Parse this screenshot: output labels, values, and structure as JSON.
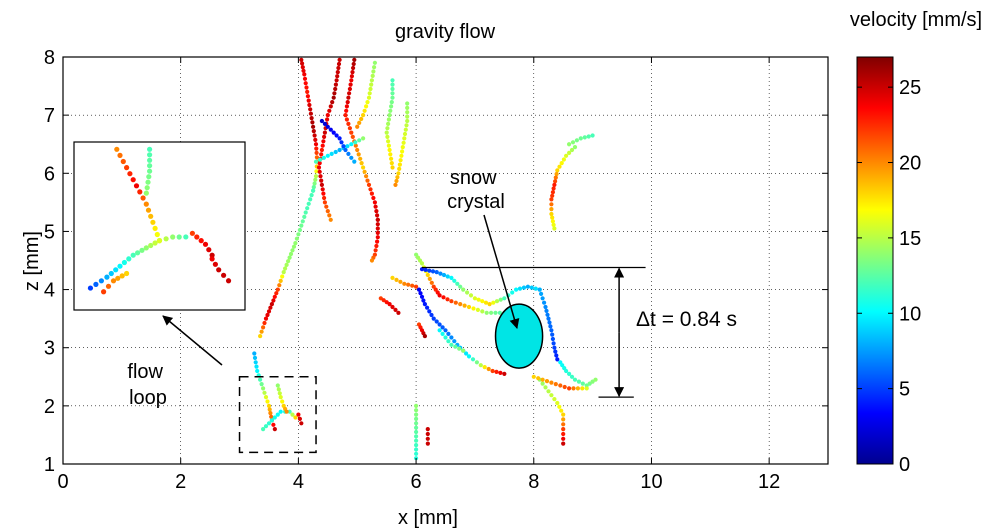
{
  "chart_data": {
    "type": "scatter",
    "title": "gravity flow",
    "xlabel": "x [mm]",
    "ylabel": "z [mm]",
    "xlim": [
      0,
      13
    ],
    "ylim": [
      1,
      8
    ],
    "xticks": [
      "0",
      "2",
      "4",
      "6",
      "8",
      "10",
      "12"
    ],
    "yticks": [
      "1",
      "2",
      "3",
      "4",
      "5",
      "6",
      "7",
      "8"
    ],
    "grid": true,
    "colorbar": {
      "label": "velocity [mm/s]",
      "range": [
        0,
        27
      ],
      "ticks": [
        "0",
        "5",
        "10",
        "15",
        "20",
        "25"
      ],
      "colormap": "jet"
    },
    "annotations": {
      "snow_crystal": "snow\ncrystal",
      "flow_loop": "flow\nloop",
      "time_interval": "Δt = 0.84 s"
    },
    "crystal": {
      "center": [
        7.75,
        3.2
      ],
      "semi_axes": [
        0.4,
        0.55
      ],
      "color": "#00e5e5"
    },
    "flow_loop_box": {
      "x": [
        3.0,
        4.3
      ],
      "z": [
        1.2,
        2.5
      ]
    },
    "dt_bracket": {
      "z_top": 4.38,
      "z_bottom": 2.15,
      "x_top_line": [
        6.1,
        9.9
      ],
      "x_bottom_line": [
        9.1,
        9.7
      ],
      "x_arrow": 9.45
    },
    "tracks": [
      {
        "points": [
          [
            4.05,
            7.95
          ],
          [
            4.1,
            7.7
          ],
          [
            4.15,
            7.4
          ],
          [
            4.2,
            7.1
          ],
          [
            4.25,
            6.8
          ],
          [
            4.3,
            6.5
          ],
          [
            4.32,
            6.2
          ],
          [
            4.3,
            5.95
          ],
          [
            4.25,
            5.7
          ]
        ],
        "velocity": [
          25,
          24,
          23,
          25,
          26,
          24,
          20,
          15,
          12
        ]
      },
      {
        "points": [
          [
            4.25,
            5.7
          ],
          [
            4.15,
            5.4
          ],
          [
            4.05,
            5.1
          ],
          [
            3.95,
            4.8
          ],
          [
            3.85,
            4.55
          ],
          [
            3.75,
            4.3
          ],
          [
            3.65,
            4.0
          ],
          [
            3.55,
            3.75
          ],
          [
            3.45,
            3.5
          ],
          [
            3.35,
            3.2
          ]
        ],
        "velocity": [
          12,
          12,
          13,
          14,
          14,
          15,
          22,
          25,
          24,
          18
        ]
      },
      {
        "points": [
          [
            4.7,
            7.95
          ],
          [
            4.65,
            7.6
          ],
          [
            4.6,
            7.3
          ],
          [
            4.5,
            7.0
          ],
          [
            4.45,
            6.7
          ],
          [
            4.4,
            6.4
          ],
          [
            4.35,
            6.1
          ],
          [
            4.4,
            5.8
          ],
          [
            4.45,
            5.5
          ],
          [
            4.55,
            5.2
          ]
        ],
        "velocity": [
          25,
          25,
          26,
          24,
          25,
          23,
          24,
          25,
          22,
          20
        ]
      },
      {
        "points": [
          [
            4.95,
            7.95
          ],
          [
            4.9,
            7.6
          ],
          [
            4.85,
            7.3
          ],
          [
            4.8,
            7.0
          ],
          [
            4.9,
            6.7
          ],
          [
            5.0,
            6.4
          ],
          [
            5.1,
            6.1
          ],
          [
            5.2,
            5.8
          ],
          [
            5.3,
            5.5
          ],
          [
            5.35,
            5.2
          ]
        ],
        "velocity": [
          26,
          24,
          25,
          23,
          22,
          20,
          18,
          22,
          24,
          25
        ]
      },
      {
        "points": [
          [
            5.3,
            7.9
          ],
          [
            5.25,
            7.6
          ],
          [
            5.2,
            7.3
          ],
          [
            5.1,
            7.0
          ],
          [
            5.0,
            6.8
          ]
        ],
        "velocity": [
          14,
          15,
          16,
          18,
          20
        ]
      },
      {
        "points": [
          [
            4.3,
            6.2
          ],
          [
            4.5,
            6.3
          ],
          [
            4.7,
            6.4
          ],
          [
            4.9,
            6.5
          ],
          [
            5.1,
            6.6
          ]
        ],
        "velocity": [
          12,
          10,
          8,
          10,
          14
        ]
      },
      {
        "points": [
          [
            5.6,
            7.6
          ],
          [
            5.6,
            7.3
          ],
          [
            5.55,
            7.0
          ],
          [
            5.5,
            6.7
          ],
          [
            5.55,
            6.4
          ],
          [
            5.6,
            6.1
          ]
        ],
        "velocity": [
          12,
          13,
          14,
          15,
          17,
          18
        ]
      },
      {
        "points": [
          [
            5.85,
            7.2
          ],
          [
            5.85,
            6.9
          ],
          [
            5.8,
            6.6
          ],
          [
            5.75,
            6.3
          ],
          [
            5.7,
            6.0
          ],
          [
            5.65,
            5.8
          ]
        ],
        "velocity": [
          14,
          15,
          16,
          17,
          18,
          20
        ]
      },
      {
        "points": [
          [
            4.4,
            6.9
          ],
          [
            4.55,
            6.75
          ],
          [
            4.7,
            6.6
          ],
          [
            4.8,
            6.4
          ],
          [
            4.95,
            6.2
          ]
        ],
        "velocity": [
          2,
          3,
          4,
          6,
          8
        ]
      },
      {
        "points": [
          [
            5.35,
            5.2
          ],
          [
            5.35,
            4.9
          ],
          [
            5.3,
            4.6
          ],
          [
            5.25,
            4.5
          ]
        ],
        "velocity": [
          25,
          24,
          22,
          20
        ]
      },
      {
        "points": [
          [
            8.7,
            6.45
          ],
          [
            8.55,
            6.3
          ],
          [
            8.4,
            6.05
          ],
          [
            8.35,
            5.8
          ],
          [
            8.3,
            5.55
          ],
          [
            8.3,
            5.3
          ],
          [
            8.35,
            5.05
          ]
        ],
        "velocity": [
          14,
          16,
          18,
          23,
          22,
          18,
          16
        ]
      },
      {
        "points": [
          [
            9.0,
            6.65
          ],
          [
            8.8,
            6.6
          ],
          [
            8.6,
            6.5
          ]
        ],
        "velocity": [
          12,
          13,
          14
        ]
      },
      {
        "points": [
          [
            6.0,
            4.6
          ],
          [
            6.1,
            4.45
          ],
          [
            6.2,
            4.25
          ],
          [
            6.3,
            4.05
          ],
          [
            6.4,
            3.9
          ],
          [
            6.6,
            3.8
          ],
          [
            6.9,
            3.7
          ],
          [
            7.2,
            3.6
          ],
          [
            7.5,
            3.6
          ]
        ],
        "velocity": [
          14,
          15,
          18,
          22,
          24,
          22,
          18,
          14,
          12
        ]
      },
      {
        "points": [
          [
            6.1,
            4.35
          ],
          [
            6.35,
            4.3
          ],
          [
            6.6,
            4.2
          ],
          [
            6.8,
            4.0
          ],
          [
            7.0,
            3.85
          ],
          [
            7.25,
            3.75
          ],
          [
            7.5,
            3.85
          ],
          [
            7.7,
            4.0
          ],
          [
            7.9,
            4.05
          ],
          [
            8.1,
            4.0
          ]
        ],
        "velocity": [
          4,
          6,
          10,
          14,
          16,
          18,
          12,
          10,
          8,
          10
        ]
      },
      {
        "points": [
          [
            6.05,
            4.0
          ],
          [
            6.15,
            3.75
          ],
          [
            6.3,
            3.5
          ],
          [
            6.5,
            3.3
          ],
          [
            6.7,
            3.05
          ],
          [
            6.9,
            2.85
          ],
          [
            7.1,
            2.7
          ],
          [
            7.3,
            2.6
          ],
          [
            7.5,
            2.55
          ]
        ],
        "velocity": [
          3,
          4,
          5,
          6,
          8,
          10,
          15,
          22,
          25
        ]
      },
      {
        "points": [
          [
            6.4,
            3.3
          ],
          [
            6.6,
            3.05
          ],
          [
            6.8,
            2.95
          ]
        ],
        "velocity": [
          10,
          12,
          14
        ]
      },
      {
        "points": [
          [
            8.1,
            4.0
          ],
          [
            8.2,
            3.7
          ],
          [
            8.3,
            3.3
          ],
          [
            8.35,
            3.0
          ],
          [
            8.4,
            2.8
          ]
        ],
        "velocity": [
          8,
          7,
          6,
          5,
          4
        ]
      },
      {
        "points": [
          [
            8.45,
            2.75
          ],
          [
            8.55,
            2.6
          ],
          [
            8.7,
            2.45
          ],
          [
            8.9,
            2.35
          ],
          [
            9.05,
            2.45
          ]
        ],
        "velocity": [
          10,
          11,
          12,
          13,
          14
        ]
      },
      {
        "points": [
          [
            8.1,
            2.45
          ],
          [
            8.25,
            2.25
          ],
          [
            8.4,
            2.05
          ],
          [
            8.5,
            1.85
          ],
          [
            8.5,
            1.6
          ],
          [
            8.5,
            1.35
          ]
        ],
        "velocity": [
          14,
          15,
          16,
          18,
          22,
          25
        ]
      },
      {
        "points": [
          [
            8.0,
            2.5
          ],
          [
            8.3,
            2.4
          ],
          [
            8.6,
            2.3
          ],
          [
            8.9,
            2.3
          ]
        ],
        "velocity": [
          18,
          20,
          22,
          16
        ]
      },
      {
        "points": [
          [
            5.4,
            3.85
          ],
          [
            5.55,
            3.75
          ],
          [
            5.7,
            3.6
          ]
        ],
        "velocity": [
          22,
          24,
          25
        ]
      },
      {
        "points": [
          [
            5.6,
            4.2
          ],
          [
            5.8,
            4.1
          ],
          [
            6.0,
            4.05
          ]
        ],
        "velocity": [
          18,
          20,
          22
        ]
      },
      {
        "points": [
          [
            6.05,
            3.4
          ],
          [
            6.1,
            3.3
          ],
          [
            6.15,
            3.2
          ]
        ],
        "velocity": [
          22,
          24,
          26
        ]
      },
      {
        "points": [
          [
            6.0,
            2.0
          ],
          [
            6.0,
            1.7
          ],
          [
            6.0,
            1.4
          ],
          [
            6.0,
            1.1
          ]
        ],
        "velocity": [
          14,
          13,
          12,
          11
        ]
      },
      {
        "points": [
          [
            6.2,
            1.6
          ],
          [
            6.2,
            1.35
          ]
        ],
        "velocity": [
          25,
          25
        ]
      },
      {
        "points": [
          [
            3.25,
            2.9
          ],
          [
            3.3,
            2.6
          ],
          [
            3.4,
            2.3
          ],
          [
            3.5,
            2.0
          ],
          [
            3.55,
            1.75
          ],
          [
            3.6,
            1.6
          ]
        ],
        "velocity": [
          8,
          10,
          14,
          18,
          22,
          25
        ]
      },
      {
        "points": [
          [
            3.4,
            1.6
          ],
          [
            3.55,
            1.75
          ],
          [
            3.7,
            1.9
          ],
          [
            3.85,
            1.9
          ],
          [
            3.95,
            1.8
          ]
        ],
        "velocity": [
          12,
          11,
          10,
          12,
          18
        ]
      },
      {
        "points": [
          [
            3.65,
            2.35
          ],
          [
            3.7,
            2.15
          ],
          [
            3.75,
            2.0
          ],
          [
            3.8,
            1.9
          ]
        ],
        "velocity": [
          14,
          16,
          18,
          20
        ]
      },
      {
        "points": [
          [
            4.0,
            1.85
          ],
          [
            4.05,
            1.7
          ]
        ],
        "velocity": [
          24,
          25
        ]
      }
    ],
    "inset_tracks": [
      {
        "points": [
          [
            1.05,
            6.5
          ],
          [
            1.2,
            6.25
          ],
          [
            1.35,
            6.0
          ],
          [
            1.5,
            5.75
          ],
          [
            1.6,
            5.5
          ],
          [
            1.7,
            5.25
          ]
        ],
        "velocity": [
          20,
          22,
          24,
          20,
          18,
          16
        ]
      },
      {
        "points": [
          [
            1.55,
            6.5
          ],
          [
            1.55,
            6.2
          ],
          [
            1.5,
            5.9
          ]
        ],
        "velocity": [
          12,
          13,
          14
        ]
      },
      {
        "points": [
          [
            1.7,
            5.25
          ],
          [
            1.5,
            5.15
          ],
          [
            1.3,
            5.05
          ],
          [
            1.1,
            4.9
          ],
          [
            0.9,
            4.75
          ],
          [
            0.65,
            4.6
          ]
        ],
        "velocity": [
          16,
          14,
          12,
          10,
          8,
          5
        ]
      },
      {
        "points": [
          [
            1.7,
            5.25
          ],
          [
            1.9,
            5.3
          ],
          [
            2.1,
            5.3
          ]
        ],
        "velocity": [
          16,
          14,
          12
        ]
      },
      {
        "points": [
          [
            2.2,
            5.35
          ],
          [
            2.4,
            5.2
          ],
          [
            2.5,
            5.05
          ]
        ],
        "velocity": [
          22,
          24,
          25
        ]
      },
      {
        "points": [
          [
            2.5,
            5.0
          ],
          [
            2.6,
            4.85
          ],
          [
            2.75,
            4.7
          ]
        ],
        "velocity": [
          24,
          25,
          25
        ]
      },
      {
        "points": [
          [
            1.2,
            4.8
          ],
          [
            1.0,
            4.7
          ],
          [
            0.85,
            4.55
          ]
        ],
        "velocity": [
          18,
          20,
          22
        ]
      }
    ]
  }
}
